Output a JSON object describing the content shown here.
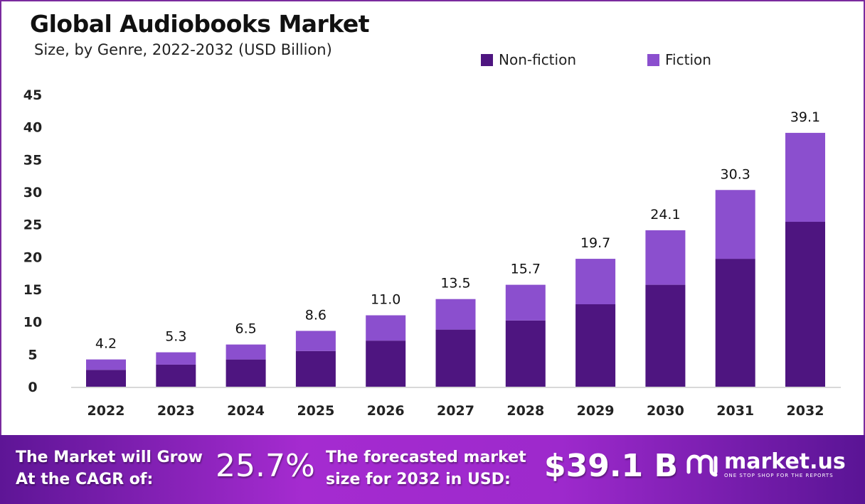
{
  "chart_data": {
    "type": "bar",
    "stacked": true,
    "title": "Global Audiobooks Market",
    "subtitle": "Size, by Genre, 2022-2032 (USD Billion)",
    "categories": [
      "2022",
      "2023",
      "2024",
      "2025",
      "2026",
      "2027",
      "2028",
      "2029",
      "2030",
      "2031",
      "2032"
    ],
    "series": [
      {
        "name": "Non-fiction",
        "color": "#4e1580",
        "values": [
          2.6,
          3.4,
          4.2,
          5.5,
          7.1,
          8.8,
          10.2,
          12.7,
          15.7,
          19.7,
          25.4
        ]
      },
      {
        "name": "Fiction",
        "color": "#8b4fce",
        "values": [
          1.6,
          1.9,
          2.3,
          3.1,
          3.9,
          4.7,
          5.5,
          7.0,
          8.4,
          10.6,
          13.7
        ]
      }
    ],
    "totals": [
      "4.2",
      "5.3",
      "6.5",
      "8.6",
      "11.0",
      "13.5",
      "15.7",
      "19.7",
      "24.1",
      "30.3",
      "39.1"
    ],
    "ylim": [
      0,
      45
    ],
    "yticks": [
      "0",
      "5",
      "10",
      "15",
      "20",
      "25",
      "30",
      "35",
      "40",
      "45"
    ],
    "grid": false,
    "legend_position": "top-right"
  },
  "banner": {
    "cagr_label_1": "The Market will Grow",
    "cagr_label_2": "At the CAGR of:",
    "cagr_value": "25.7%",
    "forecast_label_1": "The forecasted market",
    "forecast_label_2": "size for 2032 in USD:",
    "forecast_value": "$39.1 B",
    "logo_name": "market.us",
    "logo_tagline": "ONE STOP SHOP FOR THE REPORTS"
  }
}
